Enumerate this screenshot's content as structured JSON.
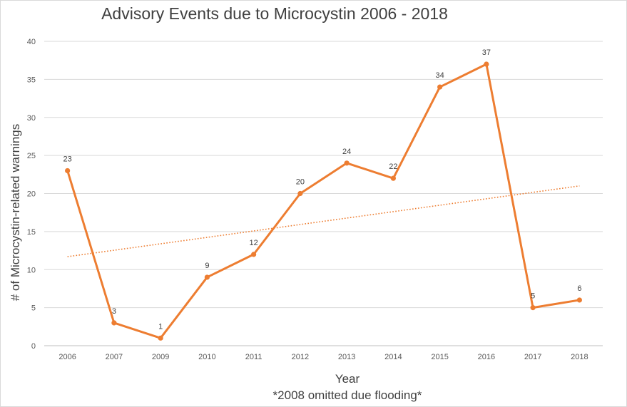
{
  "chart_data": {
    "type": "line",
    "title": "Advisory Events due to Microcystin 2006 - 2018",
    "xlabel": "Year",
    "ylabel": "# of Microcystin-related warnings",
    "note": "*2008 omitted due flooding*",
    "categories": [
      "2006",
      "2007",
      "2009",
      "2010",
      "2011",
      "2012",
      "2013",
      "2014",
      "2015",
      "2016",
      "2017",
      "2018"
    ],
    "series": [
      {
        "name": "Advisory Events",
        "values": [
          23,
          3,
          1,
          9,
          12,
          20,
          24,
          22,
          34,
          37,
          5,
          6
        ],
        "color": "#ed7d31"
      }
    ],
    "trendline": {
      "type": "linear",
      "style": "dotted",
      "color": "#ed7d31",
      "start": 11.7,
      "end": 21.0
    },
    "ylim": [
      0,
      40
    ],
    "yticks": [
      0,
      5,
      10,
      15,
      20,
      25,
      30,
      35,
      40
    ],
    "grid": true,
    "data_labels": true
  }
}
